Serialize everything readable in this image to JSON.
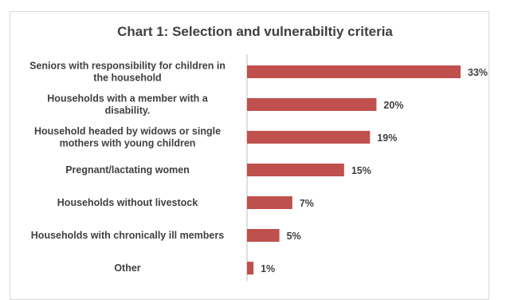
{
  "chart_data": {
    "type": "bar",
    "orientation": "horizontal",
    "title": "Chart 1: Selection and vulnerabiltiy criteria",
    "categories": [
      [
        "Seniors with responsibility for children in",
        "the household"
      ],
      [
        "Households with a member with a",
        "disability."
      ],
      [
        "Household headed by widows or single",
        "mothers with young children"
      ],
      [
        "Pregnant/lactating women"
      ],
      [
        "Households without livestock"
      ],
      [
        "Households with chronically ill members"
      ],
      [
        "Other"
      ]
    ],
    "values": [
      33,
      20,
      19,
      15,
      7,
      5,
      1
    ],
    "value_labels": [
      "33%",
      "20%",
      "19%",
      "15%",
      "7%",
      "5%",
      "1%"
    ],
    "xlim": [
      0,
      33
    ],
    "bar_color": "#c0504d",
    "grid": false
  }
}
